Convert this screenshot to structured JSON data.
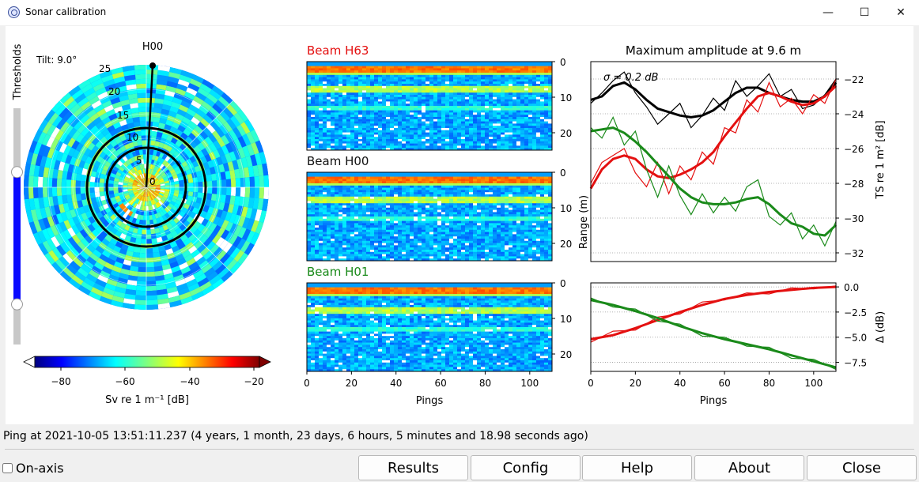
{
  "window": {
    "title": "Sonar calibration"
  },
  "thresholds_label": "Thresholds",
  "thresholds_slider": {
    "low_fraction": 0.12,
    "high_fraction": 0.83
  },
  "polar": {
    "title": "H00",
    "tilt": "Tilt: 9.0°",
    "range_ticks": [
      "0",
      "5",
      "10",
      "15",
      "20",
      "25"
    ],
    "colorbar": {
      "ticks": [
        "−80",
        "−60",
        "−40",
        "−20"
      ],
      "label": "Sv re 1 m⁻¹ [dB]",
      "min": -90,
      "max": -20
    }
  },
  "echograms": [
    {
      "title": "Beam H63",
      "color": "#e41010"
    },
    {
      "title": "Beam H00",
      "color": "#111111"
    },
    {
      "title": "Beam H01",
      "color": "#1a8a1a"
    }
  ],
  "echo_axes": {
    "yticks": [
      "0",
      "10",
      "20"
    ],
    "ylabel": "Range (m)",
    "xticks": [
      "0",
      "20",
      "40",
      "60",
      "80",
      "100"
    ],
    "xlabel": "Pings"
  },
  "chart_data": [
    {
      "type": "line",
      "title": "Maximum amplitude at 9.6 m",
      "annotation": "σ = 0.2 dB",
      "xlabel": "",
      "ylabel": "TS re 1 m² [dB]",
      "xlim": [
        0,
        110
      ],
      "ylim": [
        -32.5,
        -21
      ],
      "yticks": [
        "−22",
        "−24",
        "−26",
        "−28",
        "−30",
        "−32"
      ],
      "x": [
        0,
        5,
        10,
        15,
        20,
        25,
        30,
        35,
        40,
        45,
        50,
        55,
        60,
        65,
        70,
        75,
        80,
        85,
        90,
        95,
        100,
        105,
        110
      ],
      "series": [
        {
          "color": "#000000",
          "smooth": [
            -23.2,
            -23.0,
            -22.4,
            -22.2,
            -22.6,
            -23.2,
            -23.7,
            -23.9,
            -24.1,
            -24.2,
            -24.1,
            -23.8,
            -23.3,
            -22.8,
            -22.5,
            -22.5,
            -22.8,
            -23.0,
            -23.2,
            -23.3,
            -23.3,
            -23.0,
            -22.2
          ],
          "raw": [
            -23.4,
            -22.8,
            -22.1,
            -21.6,
            -22.8,
            -23.6,
            -24.6,
            -24.0,
            -23.4,
            -24.8,
            -24.1,
            -23.1,
            -23.8,
            -22.1,
            -23.0,
            -22.4,
            -21.7,
            -23.0,
            -22.6,
            -23.7,
            -23.5,
            -22.9,
            -22.0
          ]
        },
        {
          "color": "#e41010",
          "smooth": [
            -28.3,
            -27.2,
            -26.6,
            -26.4,
            -26.6,
            -27.2,
            -27.6,
            -27.7,
            -27.5,
            -27.2,
            -26.8,
            -26.2,
            -25.3,
            -24.5,
            -23.7,
            -23.0,
            -22.8,
            -23.0,
            -23.3,
            -23.5,
            -23.4,
            -23.0,
            -22.4
          ],
          "raw": [
            -28.0,
            -26.8,
            -26.4,
            -26.0,
            -27.4,
            -28.2,
            -26.8,
            -28.6,
            -27.0,
            -27.8,
            -26.2,
            -26.9,
            -24.8,
            -25.1,
            -23.2,
            -23.9,
            -22.2,
            -23.6,
            -23.1,
            -24.0,
            -22.9,
            -23.4,
            -22.0
          ]
        },
        {
          "color": "#1a8a1a",
          "smooth": [
            -25.0,
            -24.9,
            -24.8,
            -25.1,
            -25.6,
            -26.2,
            -26.9,
            -27.6,
            -28.3,
            -28.8,
            -29.1,
            -29.2,
            -29.2,
            -29.1,
            -28.9,
            -28.8,
            -29.2,
            -29.8,
            -30.3,
            -30.5,
            -30.9,
            -31.0,
            -30.4
          ],
          "raw": [
            -24.8,
            -25.4,
            -24.2,
            -25.8,
            -25.0,
            -27.2,
            -28.8,
            -27.0,
            -28.7,
            -29.8,
            -28.6,
            -29.7,
            -28.8,
            -29.6,
            -28.2,
            -27.8,
            -29.9,
            -30.4,
            -29.7,
            -31.2,
            -30.4,
            -31.6,
            -30.2
          ]
        }
      ]
    },
    {
      "type": "line",
      "title": "",
      "xlabel": "Pings",
      "ylabel": "Δ (dB)",
      "xlim": [
        0,
        110
      ],
      "ylim": [
        -8.4,
        0.4
      ],
      "yticks": [
        "0.0",
        "−2.5",
        "−5.0",
        "−7.5"
      ],
      "xticks": [
        "0",
        "20",
        "40",
        "60",
        "80",
        "100"
      ],
      "x": [
        0,
        10,
        20,
        30,
        40,
        50,
        60,
        70,
        80,
        90,
        100,
        110
      ],
      "series": [
        {
          "color": "#e41010",
          "smooth": [
            -5.2,
            -4.8,
            -4.1,
            -3.3,
            -2.5,
            -1.8,
            -1.2,
            -0.8,
            -0.5,
            -0.3,
            -0.1,
            0.0
          ],
          "raw": [
            -5.5,
            -4.4,
            -4.3,
            -3.0,
            -2.7,
            -1.5,
            -1.3,
            -0.6,
            -0.7,
            -0.1,
            -0.2,
            0.1
          ]
        },
        {
          "color": "#1a8a1a",
          "smooth": [
            -1.3,
            -1.8,
            -2.4,
            -3.1,
            -3.9,
            -4.6,
            -5.2,
            -5.7,
            -6.2,
            -6.8,
            -7.4,
            -8.0
          ],
          "raw": [
            -1.1,
            -2.0,
            -2.2,
            -3.4,
            -3.7,
            -4.9,
            -5.0,
            -5.9,
            -6.0,
            -7.1,
            -7.2,
            -8.2
          ]
        }
      ]
    }
  ],
  "status": {
    "ping": "Ping at 2021-10-05 13:51:11.237 (4 years, 1 month, 23 days, 6 hours, 5 minutes and 18.98 seconds ago)"
  },
  "onaxis_label": "On-axis",
  "buttons": {
    "results": "Results",
    "config": "Config",
    "help": "Help",
    "about": "About",
    "close": "Close"
  },
  "colors": {
    "accent_red": "#e41010",
    "accent_green": "#1a8a1a",
    "slider_blue": "#0a0aff"
  }
}
